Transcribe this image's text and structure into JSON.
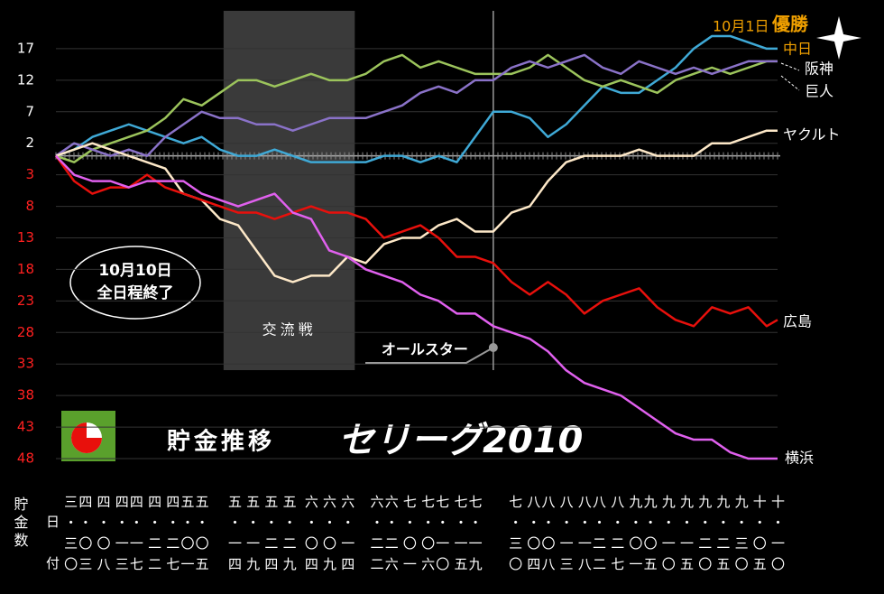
{
  "chart_data": {
    "type": "line",
    "title": "貯金推移",
    "subtitle": "セリーグ2010",
    "y_axis_label": "貯金数",
    "x_axis_label": "日付",
    "x": [
      0,
      5,
      10,
      15,
      20,
      25,
      30,
      35,
      40,
      45,
      50,
      55,
      60,
      65,
      70,
      75,
      80,
      85,
      90,
      95,
      100,
      105,
      110,
      115,
      120,
      125,
      130,
      135,
      140,
      145,
      150,
      155,
      160,
      165,
      170,
      175,
      180,
      185,
      190,
      195,
      198
    ],
    "series": [
      {
        "name": "中日",
        "color": "#3fa9d6",
        "values": [
          0,
          1,
          3,
          4,
          5,
          4,
          3,
          2,
          3,
          1,
          0,
          0,
          1,
          0,
          -1,
          -1,
          -1,
          -1,
          0,
          0,
          -1,
          0,
          -1,
          3,
          7,
          7,
          6,
          3,
          5,
          8,
          11,
          10,
          10,
          12,
          14,
          17,
          19,
          19,
          18,
          17,
          17
        ]
      },
      {
        "name": "阪神",
        "color": "#9cc45c",
        "values": [
          0,
          -1,
          1,
          2,
          3,
          4,
          6,
          9,
          8,
          10,
          12,
          12,
          11,
          12,
          13,
          12,
          12,
          13,
          15,
          16,
          14,
          15,
          14,
          13,
          13,
          13,
          14,
          16,
          14,
          12,
          11,
          12,
          11,
          10,
          12,
          13,
          14,
          13,
          14,
          15,
          15
        ]
      },
      {
        "name": "巨人",
        "color": "#8a72c8",
        "values": [
          0,
          2,
          1,
          0,
          1,
          0,
          3,
          5,
          7,
          6,
          6,
          5,
          5,
          4,
          5,
          6,
          6,
          6,
          7,
          8,
          10,
          11,
          10,
          12,
          12,
          14,
          15,
          14,
          15,
          16,
          14,
          13,
          15,
          14,
          13,
          14,
          13,
          14,
          15,
          15,
          15
        ]
      },
      {
        "name": "ヤクルト",
        "color": "#fde8c8",
        "values": [
          0,
          1,
          2,
          1,
          0,
          -1,
          -2,
          -6,
          -7,
          -10,
          -11,
          -15,
          -19,
          -20,
          -19,
          -19,
          -16,
          -17,
          -14,
          -13,
          -13,
          -11,
          -10,
          -12,
          -12,
          -9,
          -8,
          -4,
          -1,
          0,
          0,
          0,
          1,
          0,
          0,
          0,
          2,
          2,
          3,
          4,
          4
        ]
      },
      {
        "name": "広島",
        "color": "#e8100c",
        "values": [
          0,
          -4,
          -6,
          -5,
          -5,
          -3,
          -5,
          -6,
          -7,
          -8,
          -9,
          -9,
          -10,
          -9,
          -8,
          -9,
          -9,
          -10,
          -13,
          -12,
          -11,
          -13,
          -16,
          -16,
          -17,
          -20,
          -22,
          -20,
          -22,
          -25,
          -23,
          -22,
          -21,
          -24,
          -26,
          -27,
          -24,
          -25,
          -24,
          -27,
          -26
        ]
      },
      {
        "name": "横浜",
        "color": "#e060ee",
        "values": [
          0,
          -3,
          -4,
          -4,
          -5,
          -4,
          -4,
          -4,
          -6,
          -7,
          -8,
          -7,
          -6,
          -9,
          -10,
          -15,
          -16,
          -18,
          -19,
          -20,
          -22,
          -23,
          -25,
          -25,
          -27,
          -28,
          -29,
          -31,
          -34,
          -36,
          -37,
          -38,
          -40,
          -42,
          -44,
          -45,
          -45,
          -47,
          -48,
          -48,
          -48
        ]
      }
    ],
    "xlim": [
      0,
      198
    ],
    "ylim": [
      -49,
      23
    ],
    "yticks": [
      17,
      12,
      7,
      2,
      {
        "value": -3,
        "label": "3"
      },
      {
        "value": -8,
        "label": "8"
      },
      {
        "value": -13,
        "label": "13"
      },
      {
        "value": -18,
        "label": "18"
      },
      {
        "value": -23,
        "label": "23"
      },
      {
        "value": -28,
        "label": "28"
      },
      {
        "value": -33,
        "label": "33"
      },
      {
        "value": -38,
        "label": "38"
      },
      {
        "value": -43,
        "label": "43"
      },
      {
        "value": -48,
        "label": "48"
      }
    ],
    "negative_tick_color": "#ff2020",
    "grid": true,
    "xticks": [
      {
        "value": 4,
        "label": "三・三〇"
      },
      {
        "value": 8,
        "label": "四・〇三"
      },
      {
        "value": 13,
        "label": "四・〇八"
      },
      {
        "value": 18,
        "label": "四・一三"
      },
      {
        "value": 22,
        "label": "四・一七"
      },
      {
        "value": 27,
        "label": "四・二二"
      },
      {
        "value": 32,
        "label": "四・二七"
      },
      {
        "value": 36,
        "label": "五・〇一"
      },
      {
        "value": 40,
        "label": "五・〇五"
      },
      {
        "value": 49,
        "label": "五・一四"
      },
      {
        "value": 54,
        "label": "五・一九"
      },
      {
        "value": 59,
        "label": "五・二四"
      },
      {
        "value": 64,
        "label": "五・二九"
      },
      {
        "value": 70,
        "label": "六・〇四"
      },
      {
        "value": 75,
        "label": "六・〇九"
      },
      {
        "value": 80,
        "label": "六・一四"
      },
      {
        "value": 88,
        "label": "六・二二"
      },
      {
        "value": 92,
        "label": "六・二六"
      },
      {
        "value": 97,
        "label": "七・〇一"
      },
      {
        "value": 102,
        "label": "七・〇六"
      },
      {
        "value": 106,
        "label": "七・一〇"
      },
      {
        "value": 111,
        "label": "七・一五"
      },
      {
        "value": 115,
        "label": "七・一九"
      },
      {
        "value": 126,
        "label": "七・三〇"
      },
      {
        "value": 131,
        "label": "八・〇四"
      },
      {
        "value": 135,
        "label": "八・〇八"
      },
      {
        "value": 140,
        "label": "八・一三"
      },
      {
        "value": 145,
        "label": "八・一八"
      },
      {
        "value": 149,
        "label": "八・二二"
      },
      {
        "value": 154,
        "label": "八・二七"
      },
      {
        "value": 159,
        "label": "九・〇一"
      },
      {
        "value": 163,
        "label": "九・〇五"
      },
      {
        "value": 168,
        "label": "九・一〇"
      },
      {
        "value": 173,
        "label": "九・一五"
      },
      {
        "value": 178,
        "label": "九・二〇"
      },
      {
        "value": 183,
        "label": "九・二五"
      },
      {
        "value": 188,
        "label": "九・三〇"
      },
      {
        "value": 193,
        "label": "十・〇五"
      },
      {
        "value": 198,
        "label": "十・一〇"
      }
    ],
    "interleague": {
      "label": "交流戦",
      "xlim": [
        46,
        82
      ]
    },
    "allstar": {
      "label": "オールスター",
      "x": 120
    },
    "status_note": [
      "10月10日",
      "全日程終了"
    ],
    "champion_date": "10月1日",
    "champion_label": "優勝"
  }
}
